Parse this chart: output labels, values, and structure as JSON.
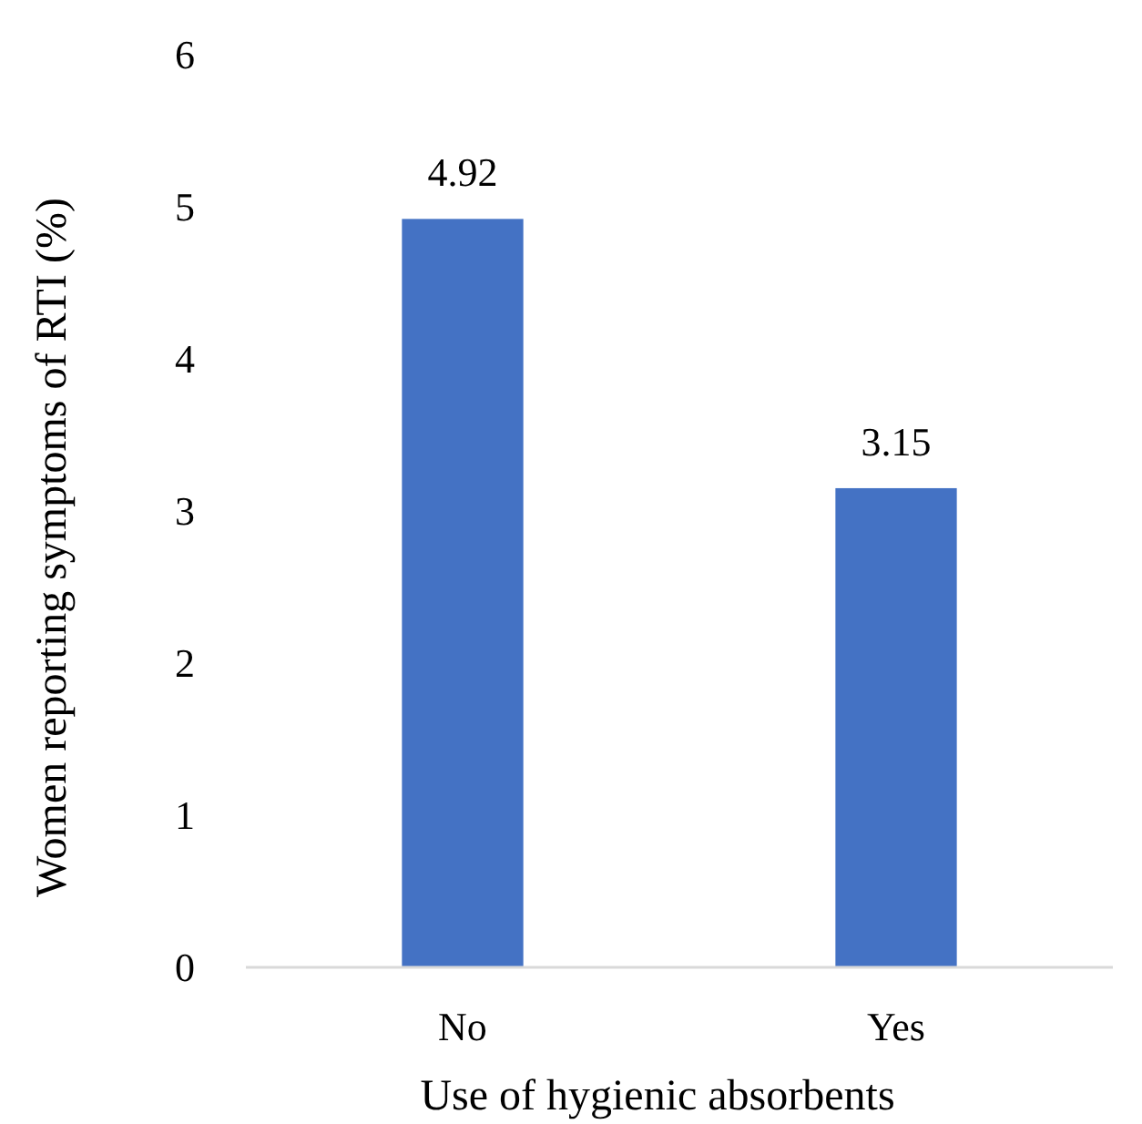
{
  "chart_data": {
    "type": "bar",
    "xlabel": "Use of hygienic absorbents",
    "ylabel": "Women reporting symptoms of RTI (%)",
    "categories": [
      "No",
      "Yes"
    ],
    "values": [
      4.92,
      3.15
    ],
    "color": "#4472c4",
    "ylim": [
      0,
      6
    ],
    "yticks": [
      0,
      1,
      2,
      3,
      4,
      5,
      6
    ],
    "data_labels": true
  }
}
